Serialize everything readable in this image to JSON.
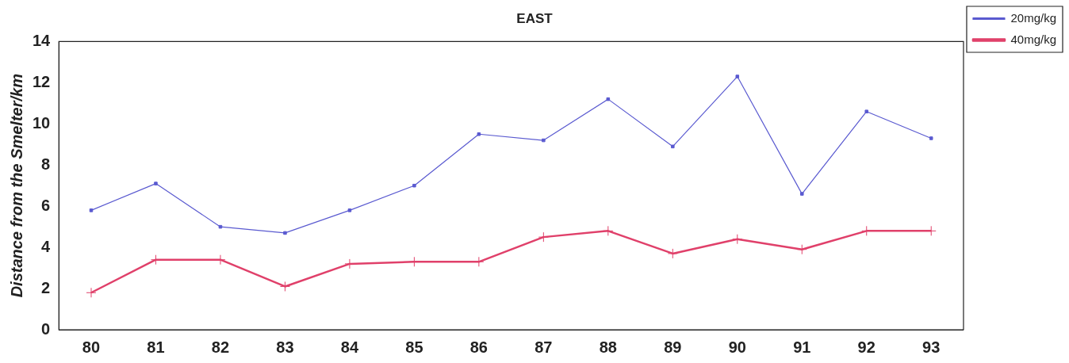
{
  "chart_data": {
    "type": "line",
    "title": "EAST",
    "ylabel": "Distance from the Smelter/km",
    "categories": [
      "80",
      "81",
      "82",
      "83",
      "84",
      "85",
      "86",
      "87",
      "88",
      "89",
      "90",
      "91",
      "92",
      "93"
    ],
    "series": [
      {
        "name": "20mg/kg",
        "color": "#5a5ad0",
        "marker": "square",
        "values": [
          5.8,
          7.1,
          5.0,
          4.7,
          5.8,
          7.0,
          9.5,
          9.2,
          11.2,
          8.9,
          12.3,
          6.6,
          10.6,
          9.3
        ]
      },
      {
        "name": "40mg/kg",
        "color": "#e0406a",
        "marker": "cross",
        "values": [
          1.8,
          3.4,
          3.4,
          2.1,
          3.2,
          3.3,
          3.3,
          4.5,
          4.8,
          3.7,
          4.4,
          3.9,
          4.8,
          4.8
        ]
      }
    ],
    "ylim": [
      0,
      14
    ],
    "yticks": [
      0,
      2,
      4,
      6,
      8,
      10,
      12,
      14
    ],
    "grid": false,
    "legend": "top right"
  }
}
